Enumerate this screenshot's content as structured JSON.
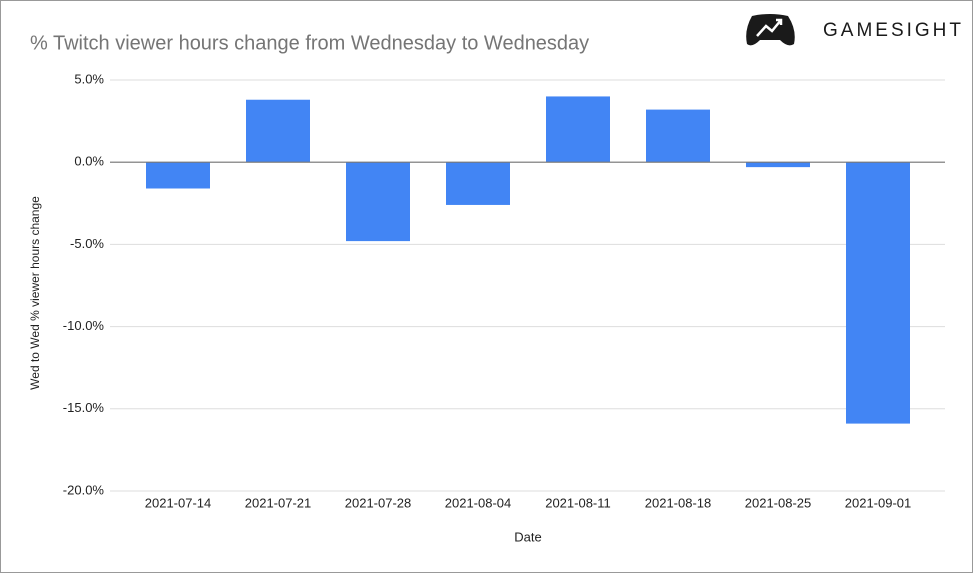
{
  "brand": "GAMESIGHT",
  "chart_data": {
    "type": "bar",
    "title": "% Twitch viewer hours change from Wednesday to Wednesday",
    "x_label": "Date",
    "y_label": "Wed to Wed % viewer hours change",
    "categories": [
      "2021-07-14",
      "2021-07-21",
      "2021-07-28",
      "2021-08-04",
      "2021-08-11",
      "2021-08-18",
      "2021-08-25",
      "2021-09-01"
    ],
    "values": [
      -1.6,
      3.8,
      -4.8,
      -2.6,
      4.0,
      3.2,
      -0.3,
      -15.9
    ],
    "color": "#4285f4",
    "ylim": [
      -20,
      5
    ],
    "yticks": [
      {
        "value": 5,
        "label": "5.0%"
      },
      {
        "value": 0,
        "label": "0.0%"
      },
      {
        "value": -5,
        "label": "-5.0%"
      },
      {
        "value": -10,
        "label": "-10.0%"
      },
      {
        "value": -15,
        "label": "-15.0%"
      },
      {
        "value": -20,
        "label": "-20.0%"
      }
    ],
    "grid": true
  }
}
